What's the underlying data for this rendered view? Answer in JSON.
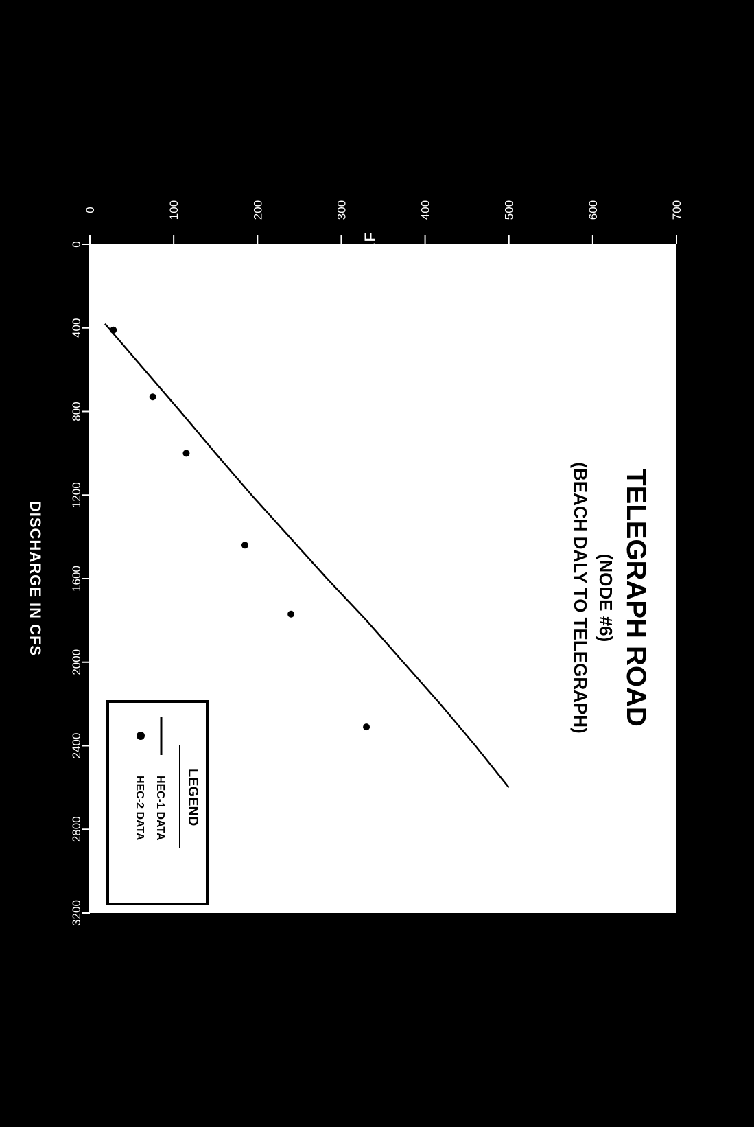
{
  "chart_data": {
    "type": "line",
    "title": "TELEGRAPH ROAD",
    "subtitle_1": "(NODE #6)",
    "subtitle_2": "(BEACH DALY TO TELEGRAPH)",
    "xlabel": "DISCHARGE IN CFS",
    "ylabel": "STORAGE IN AF",
    "xlim": [
      0,
      3200
    ],
    "ylim": [
      0,
      700
    ],
    "x_ticks": [
      "0",
      "400",
      "800",
      "1200",
      "1600",
      "2000",
      "2400",
      "2800",
      "3200"
    ],
    "y_ticks": [
      "0",
      "100",
      "200",
      "300",
      "400",
      "500",
      "600",
      "700"
    ],
    "legend": {
      "title": "LEGEND",
      "entries": [
        {
          "label": "HEC-1 DATA",
          "marker": "line"
        },
        {
          "label": "HEC-2 DATA",
          "marker": "dot"
        }
      ]
    },
    "series": [
      {
        "name": "HEC-1 DATA",
        "style": "line",
        "x": [
          380,
          600,
          800,
          1000,
          1200,
          1400,
          1600,
          1800,
          2000,
          2200,
          2400,
          2600
        ],
        "y": [
          18,
          65,
          108,
          150,
          193,
          238,
          283,
          330,
          374,
          418,
          460,
          500
        ]
      },
      {
        "name": "HEC-2 DATA",
        "style": "scatter",
        "x": [
          410,
          730,
          1000,
          1440,
          1770,
          2310
        ],
        "y": [
          28,
          75,
          115,
          185,
          240,
          330
        ]
      }
    ]
  }
}
